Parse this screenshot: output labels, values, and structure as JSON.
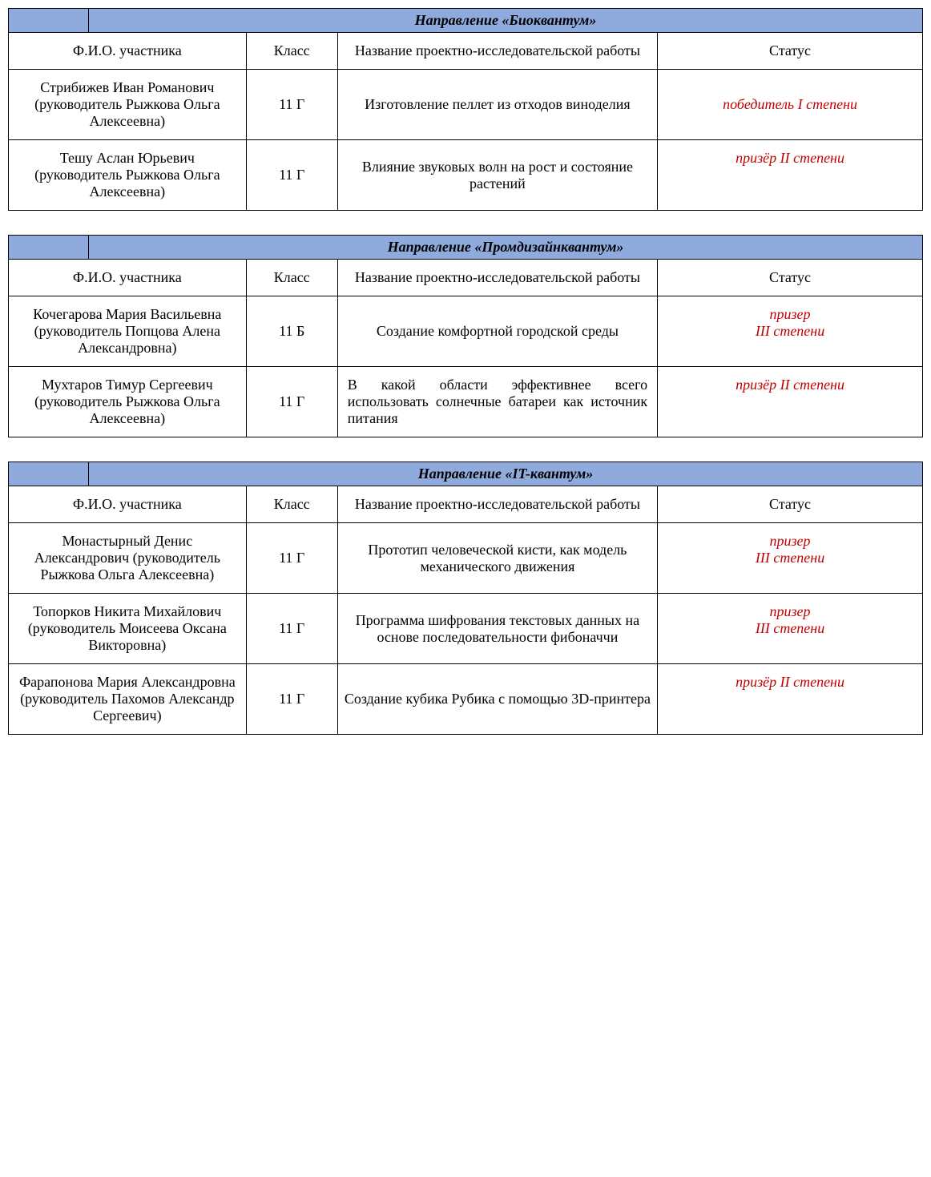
{
  "columns": {
    "name": "Ф.И.О. участника",
    "class": "Класс",
    "project": "Название проектно-исследовательской работы",
    "status": "Статус"
  },
  "colors": {
    "header_bg": "#8faadc",
    "status_text": "#c00000",
    "border": "#000000",
    "page_bg": "#ffffff",
    "text": "#000000"
  },
  "sections": [
    {
      "title": "Направление «Биоквантум»",
      "rows": [
        {
          "name": "Стрибижев Иван Романович (руководитель Рыжкова Ольга Алексеевна)",
          "class": "11 Г",
          "project": "Изготовление пеллет из отходов виноделия",
          "status": "победитель I степени",
          "status_align": "middle"
        },
        {
          "name": "Тешу Аслан Юрьевич (руководитель Рыжкова Ольга Алексеевна)",
          "class": "11 Г",
          "project": "Влияние звуковых волн на рост и состояние растений",
          "status": "призёр II степени",
          "status_align": "top"
        }
      ]
    },
    {
      "title": "Направление «Промдизайнквантум»",
      "rows": [
        {
          "name": "Кочегарова Мария Васильевна (руководитель Попцова Алена Александровна)",
          "class": "11 Б",
          "project": "Создание комфортной городской среды",
          "status": "призер\nIII степени",
          "status_align": "top"
        },
        {
          "name": "Мухтаров Тимур Сергеевич (руководитель Рыжкова Ольга Алексеевна)",
          "class": "11 Г",
          "project": "В какой области эффективнее всего использовать солнечные батареи как источник питания",
          "project_justify": true,
          "status": "призёр II степени",
          "status_align": "top"
        }
      ]
    },
    {
      "title": "Направление  «IT-квантум»",
      "rows": [
        {
          "name": "Монастырный Денис Александрович (руководитель Рыжкова Ольга Алексеевна)",
          "class": "11 Г",
          "project": "Прототип человеческой кисти, как модель механического движения",
          "status": "призер\nIII степени",
          "status_align": "top"
        },
        {
          "name": "Топорков Никита Михайлович (руководитель Моисеева Оксана Викторовна)",
          "class": "11 Г",
          "project": "Программа шифрования текстовых данных на основе последовательности фибоначчи",
          "status": "призер\nIII степени",
          "status_align": "top"
        },
        {
          "name": "Фарапонова Мария Александровна (руководитель Пахомов Александр Сергеевич)",
          "class": "11 Г",
          "project": "Создание кубика Рубика с помощью 3D-принтера",
          "status": "призёр II степени",
          "status_align": "top"
        }
      ]
    }
  ]
}
